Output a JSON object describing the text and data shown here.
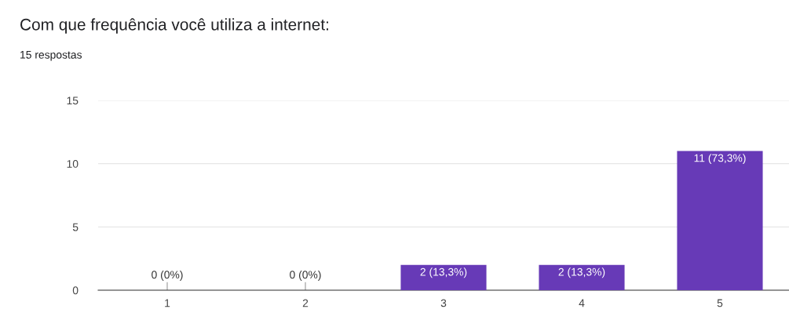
{
  "chart_data": {
    "type": "bar",
    "title": "Com que frequência você utiliza a internet:",
    "subtitle": "15 respostas",
    "categories": [
      "1",
      "2",
      "3",
      "4",
      "5"
    ],
    "values": [
      0,
      0,
      2,
      2,
      11
    ],
    "color": "#673ab7",
    "value_labels": [
      "0 (0%)",
      "0 (0%)",
      "2 (13,3%)",
      "2 (13,3%)",
      "11 (73,3%)"
    ],
    "ylim": [
      0,
      15
    ],
    "yticks": [
      0,
      5,
      10,
      15
    ],
    "grid": "y",
    "legend": false
  }
}
